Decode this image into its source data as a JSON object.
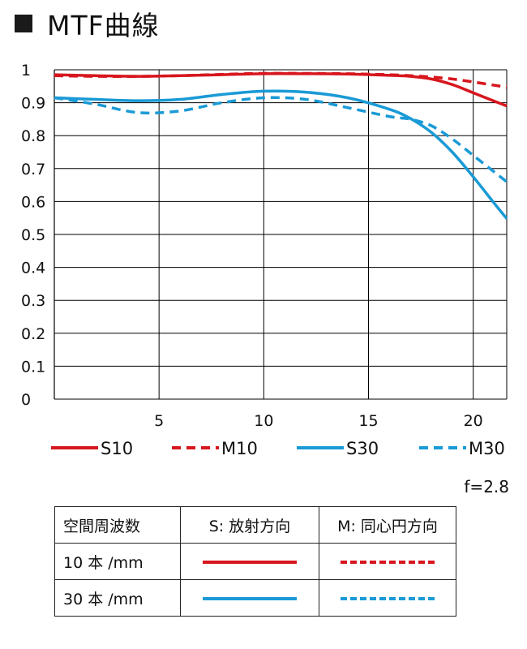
{
  "title": "MTF曲線",
  "aperture": "f=2.8",
  "colors": {
    "red": "#d7161e",
    "blue": "#1a9ad6",
    "grid": "#000000"
  },
  "chart_data": {
    "type": "line",
    "title": "MTF曲線",
    "xlabel": "",
    "ylabel": "",
    "xlim": [
      0,
      21.6
    ],
    "ylim": [
      0,
      1
    ],
    "xticks": [
      5,
      10,
      15,
      20
    ],
    "xtick_labels": [
      "5",
      "10",
      "15",
      "20"
    ],
    "yticks": [
      0,
      0.1,
      0.2,
      0.3,
      0.4,
      0.5,
      0.6,
      0.7,
      0.8,
      0.9,
      1
    ],
    "ytick_labels": [
      "0",
      "0.1",
      "0.2",
      "0.3",
      "0.4",
      "0.5",
      "0.6",
      "0.7",
      "0.8",
      "0.9",
      "1"
    ],
    "grid": true,
    "legend_position": "bottom",
    "x": [
      0,
      2,
      4,
      6,
      8,
      10,
      12,
      14,
      16,
      17,
      18,
      19,
      20,
      21,
      21.6
    ],
    "series": [
      {
        "name": "S10",
        "style": "solid",
        "color": "#d7161e",
        "values": [
          0.985,
          0.982,
          0.98,
          0.982,
          0.985,
          0.988,
          0.988,
          0.987,
          0.983,
          0.98,
          0.972,
          0.955,
          0.93,
          0.905,
          0.89
        ]
      },
      {
        "name": "M10",
        "style": "dashed",
        "color": "#d7161e",
        "values": [
          0.982,
          0.98,
          0.98,
          0.982,
          0.986,
          0.989,
          0.989,
          0.988,
          0.985,
          0.982,
          0.978,
          0.972,
          0.963,
          0.953,
          0.947
        ]
      },
      {
        "name": "S30",
        "style": "solid",
        "color": "#1a9ad6",
        "values": [
          0.915,
          0.91,
          0.906,
          0.91,
          0.925,
          0.935,
          0.932,
          0.915,
          0.88,
          0.852,
          0.81,
          0.75,
          0.675,
          0.595,
          0.548
        ]
      },
      {
        "name": "M30",
        "style": "dashed",
        "color": "#1a9ad6",
        "values": [
          0.915,
          0.895,
          0.87,
          0.875,
          0.9,
          0.915,
          0.91,
          0.885,
          0.858,
          0.85,
          0.83,
          0.79,
          0.74,
          0.69,
          0.66
        ]
      }
    ]
  },
  "table": {
    "headers": [
      "空間周波数",
      "S: 放射方向",
      "M: 同心円方向"
    ],
    "rows": [
      {
        "freq": "10 本 /mm",
        "s_color": "#d7161e",
        "m_color": "#d7161e"
      },
      {
        "freq": "30 本 /mm",
        "s_color": "#1a9ad6",
        "m_color": "#1a9ad6"
      }
    ]
  }
}
